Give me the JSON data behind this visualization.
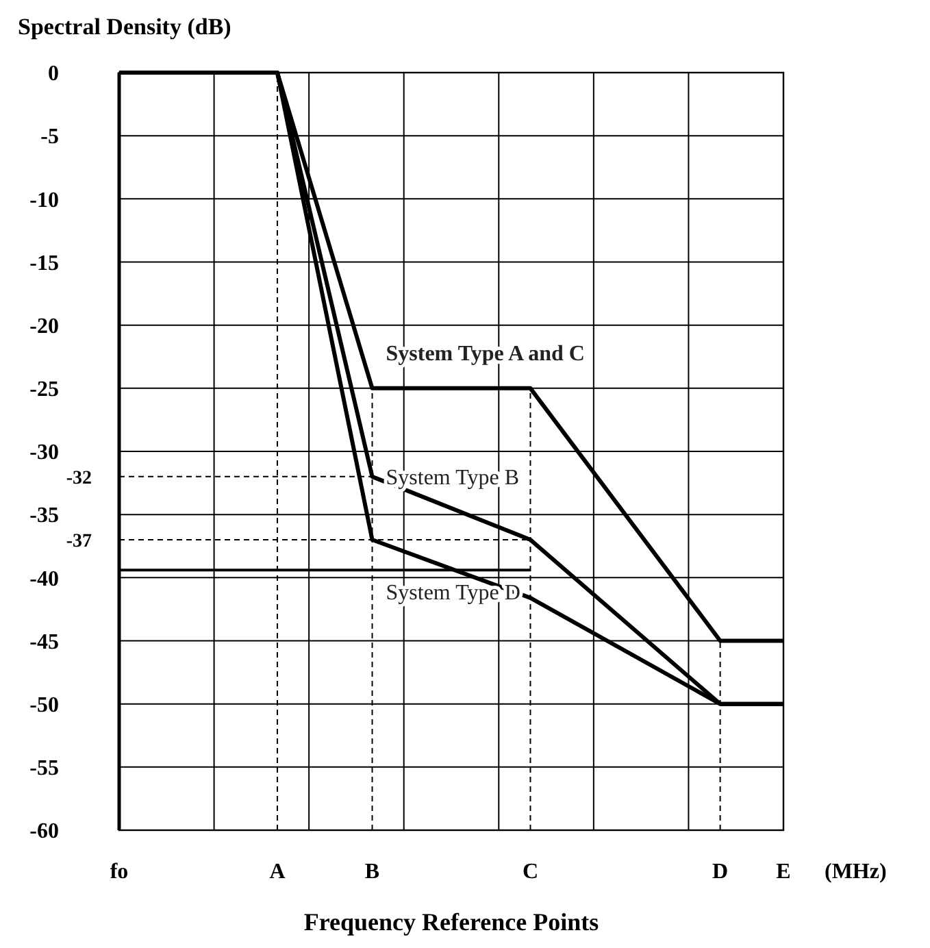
{
  "chart_data": {
    "type": "line",
    "ylabel": "Spectral Density (dB)",
    "xlabel": "Frequency Reference Points",
    "annotations": [
      "(MHz)"
    ],
    "categories": [
      "fo",
      null,
      null,
      null,
      null,
      "A",
      null,
      null,
      "B",
      null,
      null,
      null,
      null,
      "C",
      null,
      null,
      null,
      null,
      null,
      "D",
      null,
      "E"
    ],
    "ylim": [
      -60,
      0
    ],
    "yticks": [
      0,
      -5,
      -10,
      -15,
      -20,
      -25,
      -30,
      -35,
      -40,
      -45,
      -50,
      -55,
      -60
    ],
    "grid": true,
    "marker": "none",
    "line_style": "solid",
    "series": [
      {
        "name": "System Type A and C",
        "color": "#000000",
        "values": [
          0,
          null,
          null,
          null,
          null,
          0,
          null,
          null,
          -25,
          null,
          null,
          null,
          null,
          -25,
          null,
          null,
          null,
          null,
          null,
          -45,
          null,
          -45
        ]
      },
      {
        "name": "System Type B",
        "color": "#000000",
        "values": [
          0,
          null,
          null,
          null,
          null,
          0,
          null,
          null,
          -32,
          null,
          null,
          null,
          null,
          -37,
          null,
          null,
          null,
          null,
          null,
          -50,
          null,
          -50
        ]
      },
      {
        "name": "System Type D",
        "color": "#000000",
        "values": [
          0,
          null,
          null,
          null,
          null,
          0,
          null,
          null,
          -37,
          null,
          null,
          null,
          null,
          -41.6,
          null,
          null,
          null,
          null,
          null,
          -50,
          null,
          -50
        ]
      },
      {
        "color": "#000000",
        "values": [
          -39.4,
          null,
          null,
          null,
          null,
          null,
          null,
          null,
          null,
          null,
          null,
          null,
          null,
          -39.4,
          null,
          null,
          null,
          null,
          null,
          null,
          null,
          null
        ]
      }
    ],
    "ref_lines": [
      {
        "axis": "x",
        "value": "A",
        "line_style": "dashed"
      },
      {
        "axis": "x",
        "value": "B",
        "line_style": "dashed"
      },
      {
        "axis": "x",
        "value": "C",
        "line_style": "dashed"
      },
      {
        "axis": "x",
        "value": "D",
        "line_style": "dashed"
      },
      {
        "axis": "y",
        "value": -32,
        "label": "-32",
        "line_style": "dashed"
      },
      {
        "axis": "y",
        "value": -37,
        "label": "-37",
        "line_style": "dashed"
      }
    ]
  }
}
